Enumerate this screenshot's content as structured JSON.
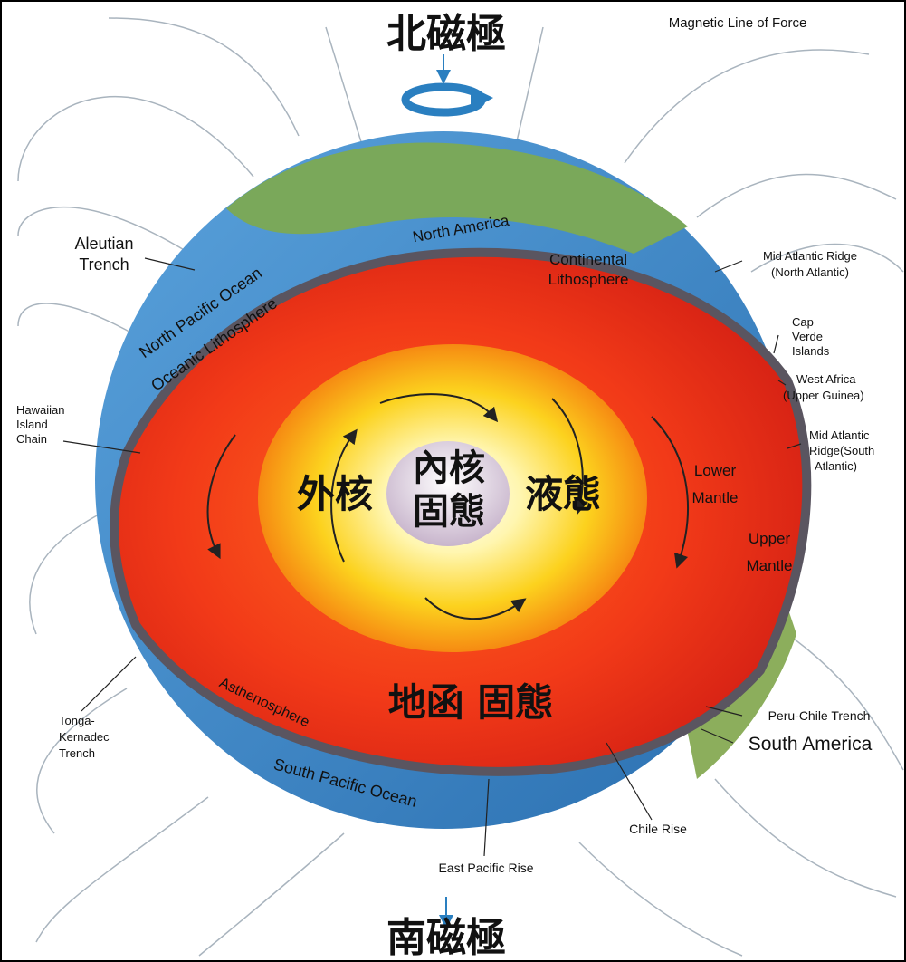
{
  "poles": {
    "north": "北磁極",
    "south": "南磁極"
  },
  "core": {
    "inner_line1": "內核",
    "inner_line2": "固態",
    "outer_left": "外核",
    "outer_right": "液態",
    "mantle": "地函 固態"
  },
  "labels": {
    "magnetic_line": "Magnetic Line of Force",
    "north_america": "North America",
    "continental_lith_1": "Continental",
    "continental_lith_2": "Lithosphere",
    "aleutian_1": "Aleutian",
    "aleutian_2": "Trench",
    "north_pacific": "North Pacific Ocean",
    "oceanic_lith": "Oceanic Lithosphere",
    "hawaiian_1": "Hawaiian",
    "hawaiian_2": "Island",
    "hawaiian_3": "Chain",
    "mar_north_1": "Mid Atlantic Ridge",
    "mar_north_2": "(North Atlantic)",
    "cap_verde_1": "Cap",
    "cap_verde_2": "Verde",
    "cap_verde_3": "Islands",
    "west_africa_1": "West Africa",
    "west_africa_2": "(Upper Guinea)",
    "mar_south_1": "Mid Atlantic",
    "mar_south_2": "Ridge(South",
    "mar_south_3": "Atlantic)",
    "lower_mantle_1": "Lower",
    "lower_mantle_2": "Mantle",
    "upper_mantle_1": "Upper",
    "upper_mantle_2": "Mantle",
    "asthenosphere": "Asthenosphere",
    "tonga_1": "Tonga-",
    "tonga_2": "Kernadec",
    "tonga_3": "Trench",
    "peru_chile": "Peru-Chile Trench",
    "south_america": "South America",
    "south_pacific": "South Pacific Ocean",
    "chile_rise": "Chile Rise",
    "east_pacific": "East Pacific Rise"
  },
  "colors": {
    "ocean": "#3b86c8",
    "land": "#7aa85a",
    "mantle": "#e8321e",
    "outer_core": "#f7b21e",
    "inner_core": "#efe2ec",
    "field_lines": "#8a9aa8",
    "arrow": "#2a7fc0"
  },
  "icons": {
    "rotation": "rotation-arrow-icon"
  }
}
